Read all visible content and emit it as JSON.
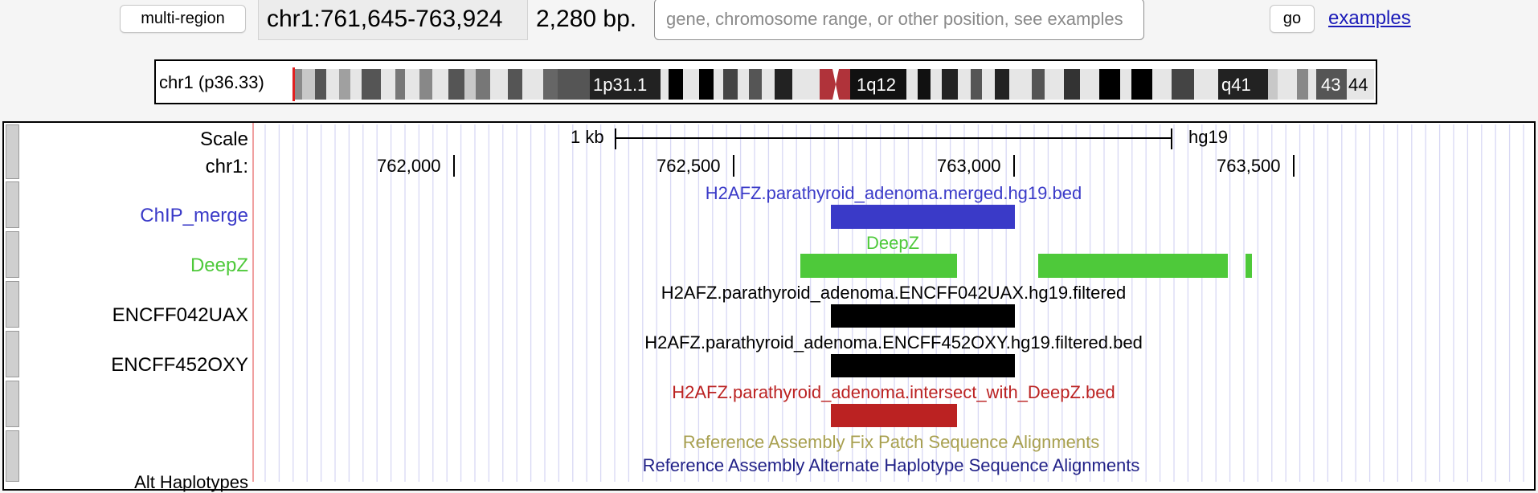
{
  "nav": {
    "multi_region_label": "multi-region",
    "position": "chr1:761,645-763,924",
    "size": "2,280 bp.",
    "search_placeholder": "gene, chromosome range, or other position, see examples",
    "go_label": "go",
    "examples_label": "examples"
  },
  "ideogram": {
    "label": "chr1 (p36.33)",
    "bands": [
      "1p31.1",
      "1q12",
      "q41",
      "43",
      "44"
    ]
  },
  "ruler": {
    "scale_label": "Scale",
    "scale_value": "1 kb",
    "assembly": "hg19",
    "chrom_label": "chr1:",
    "ticks": [
      "762,000",
      "762,500",
      "763,000",
      "763,500"
    ]
  },
  "tracks": {
    "chip_merge": {
      "label": "ChIP_merge",
      "title": "H2AFZ.parathyroid_adenoma.merged.hg19.bed",
      "color": "#3a3ac8"
    },
    "deepz": {
      "label": "DeepZ",
      "title": "DeepZ",
      "color": "#4ec93a"
    },
    "encff042uax": {
      "label": "ENCFF042UAX",
      "title": "H2AFZ.parathyroid_adenoma.ENCFF042UAX.hg19.filtered",
      "color": "#000000"
    },
    "encff452oxy": {
      "label": "ENCFF452OXY",
      "title": "H2AFZ.parathyroid_adenoma.ENCFF452OXY.hg19.filtered.bed",
      "color": "#000000"
    },
    "intersect": {
      "label": "",
      "title": "H2AFZ.parathyroid_adenoma.intersect_with_DeepZ.bed",
      "color": "#bb2222"
    },
    "fix_patch": {
      "title": "Reference Assembly Fix Patch Sequence Alignments",
      "color": "#a8a050"
    },
    "alt_haplo": {
      "title": "Reference Assembly Alternate Haplotype Sequence Alignments",
      "color": "#222288"
    },
    "alt_haplo_label_partial": "Alt Haplotypes"
  }
}
